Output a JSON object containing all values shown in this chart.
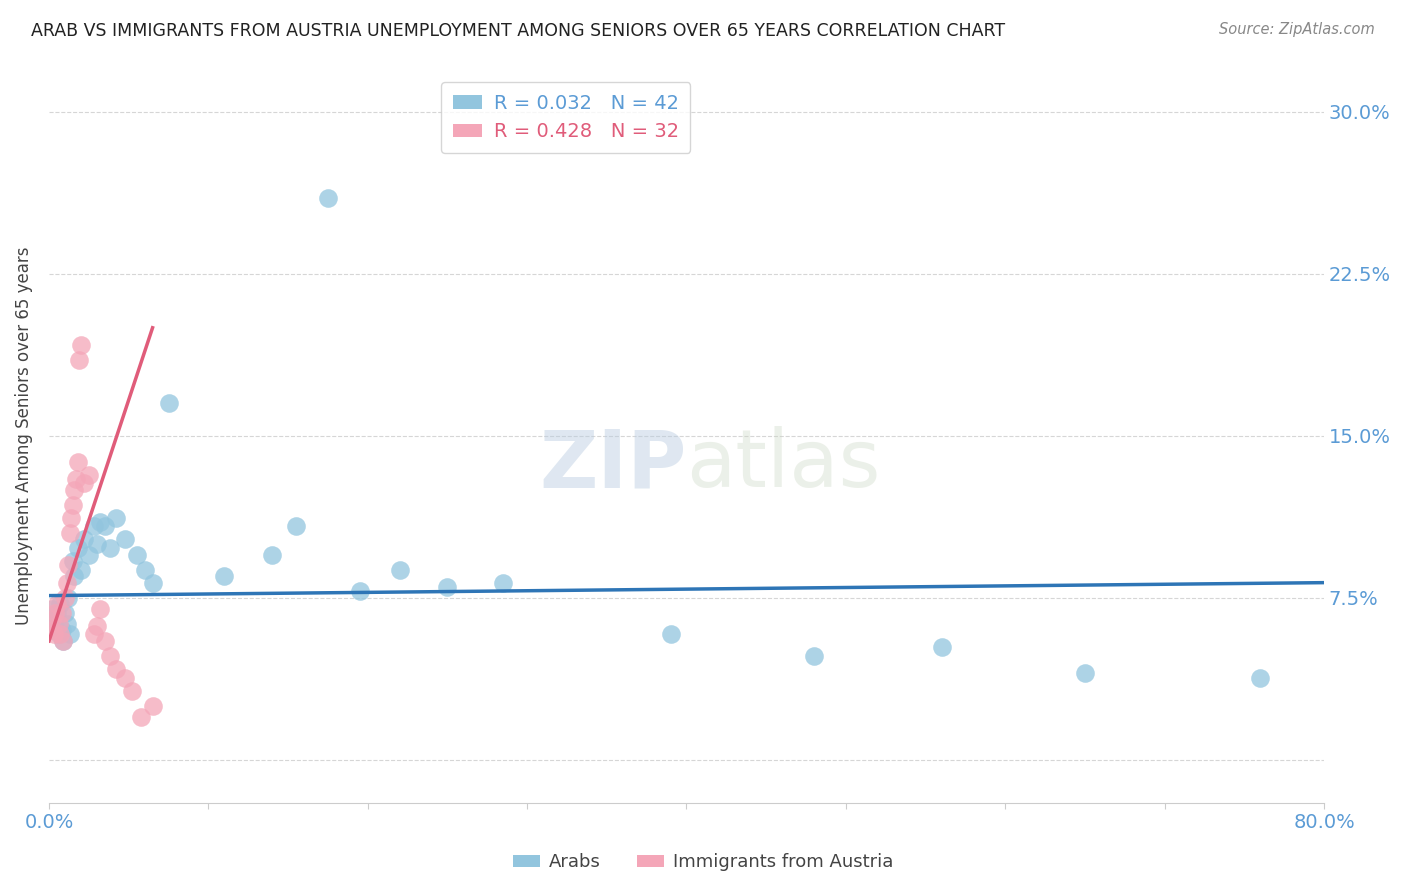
{
  "title": "ARAB VS IMMIGRANTS FROM AUSTRIA UNEMPLOYMENT AMONG SENIORS OVER 65 YEARS CORRELATION CHART",
  "source": "Source: ZipAtlas.com",
  "ylabel": "Unemployment Among Seniors over 65 years",
  "xlim": [
    0.0,
    0.8
  ],
  "ylim": [
    -0.02,
    0.32
  ],
  "xticks": [
    0.0,
    0.1,
    0.2,
    0.3,
    0.4,
    0.5,
    0.6,
    0.7,
    0.8
  ],
  "yticks": [
    0.0,
    0.075,
    0.15,
    0.225,
    0.3
  ],
  "ytick_labels": [
    "",
    "7.5%",
    "15.0%",
    "22.5%",
    "30.0%"
  ],
  "xtick_labels": [
    "0.0%",
    "",
    "",
    "",
    "",
    "",
    "",
    "",
    "80.0%"
  ],
  "legend_blue_R": "R = 0.032",
  "legend_blue_N": "N = 42",
  "legend_pink_R": "R = 0.428",
  "legend_pink_N": "N = 32",
  "tick_color": "#5B9BD5",
  "blue_color": "#92C5DE",
  "pink_color": "#F4A6B8",
  "trend_blue_color": "#2E75B6",
  "trend_pink_color": "#E05C7A",
  "blue_scatter_x": [
    0.002,
    0.003,
    0.004,
    0.005,
    0.006,
    0.007,
    0.008,
    0.009,
    0.01,
    0.011,
    0.012,
    0.013,
    0.015,
    0.016,
    0.018,
    0.02,
    0.022,
    0.025,
    0.028,
    0.03,
    0.032,
    0.035,
    0.038,
    0.042,
    0.048,
    0.055,
    0.06,
    0.065,
    0.075,
    0.11,
    0.14,
    0.155,
    0.175,
    0.195,
    0.22,
    0.25,
    0.285,
    0.39,
    0.48,
    0.56,
    0.65,
    0.76
  ],
  "blue_scatter_y": [
    0.07,
    0.065,
    0.062,
    0.068,
    0.058,
    0.072,
    0.06,
    0.055,
    0.068,
    0.063,
    0.075,
    0.058,
    0.092,
    0.085,
    0.098,
    0.088,
    0.102,
    0.095,
    0.108,
    0.1,
    0.11,
    0.108,
    0.098,
    0.112,
    0.102,
    0.095,
    0.088,
    0.082,
    0.165,
    0.085,
    0.095,
    0.108,
    0.26,
    0.078,
    0.088,
    0.08,
    0.082,
    0.058,
    0.048,
    0.052,
    0.04,
    0.038
  ],
  "pink_scatter_x": [
    0.001,
    0.002,
    0.003,
    0.004,
    0.005,
    0.006,
    0.007,
    0.008,
    0.009,
    0.01,
    0.011,
    0.012,
    0.013,
    0.014,
    0.015,
    0.016,
    0.017,
    0.018,
    0.019,
    0.02,
    0.022,
    0.025,
    0.028,
    0.03,
    0.032,
    0.035,
    0.038,
    0.042,
    0.048,
    0.052,
    0.058,
    0.065
  ],
  "pink_scatter_y": [
    0.06,
    0.065,
    0.058,
    0.068,
    0.072,
    0.063,
    0.058,
    0.068,
    0.055,
    0.075,
    0.082,
    0.09,
    0.105,
    0.112,
    0.118,
    0.125,
    0.13,
    0.138,
    0.185,
    0.192,
    0.128,
    0.132,
    0.058,
    0.062,
    0.07,
    0.055,
    0.048,
    0.042,
    0.038,
    0.032,
    0.02,
    0.025
  ],
  "blue_trend_x": [
    0.0,
    0.8
  ],
  "blue_trend_y": [
    0.076,
    0.082
  ],
  "pink_trend_x": [
    0.0,
    0.065
  ],
  "pink_trend_y": [
    0.055,
    0.2
  ]
}
